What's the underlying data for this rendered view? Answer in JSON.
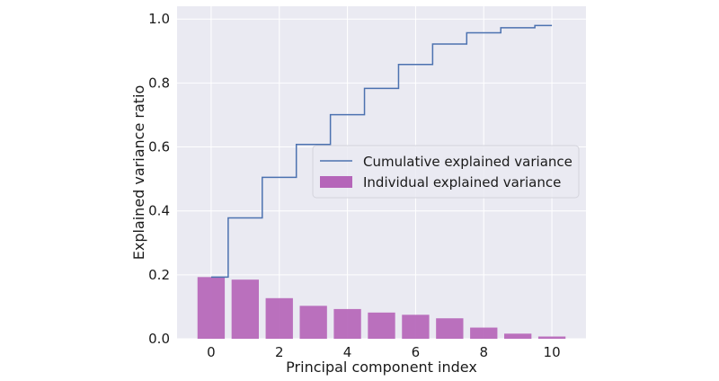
{
  "chart_data": {
    "type": "bar",
    "xlabel": "Principal component index",
    "ylabel": "Explained variance ratio",
    "xlim": [
      -1,
      11
    ],
    "ylim": [
      0,
      1.04
    ],
    "x_ticks": [
      0,
      2,
      4,
      6,
      8,
      10
    ],
    "y_ticks": [
      0.0,
      0.2,
      0.4,
      0.6,
      0.8,
      1.0
    ],
    "x_tick_labels": [
      "0",
      "2",
      "4",
      "6",
      "8",
      "10"
    ],
    "y_tick_labels": [
      "0.0",
      "0.2",
      "0.4",
      "0.6",
      "0.8",
      "1.0"
    ],
    "grid": true,
    "legend_position": "center-right",
    "x": [
      0,
      1,
      2,
      3,
      4,
      5,
      6,
      7,
      8,
      9,
      10
    ],
    "series": [
      {
        "name": "Individual explained variance",
        "type": "bar",
        "color": "#b565b9",
        "values": [
          0.193,
          0.185,
          0.127,
          0.103,
          0.093,
          0.082,
          0.075,
          0.064,
          0.035,
          0.016,
          0.007
        ]
      },
      {
        "name": "Cumulative explained variance",
        "type": "step",
        "color": "#4c72b0",
        "values": [
          0.193,
          0.378,
          0.505,
          0.608,
          0.701,
          0.783,
          0.858,
          0.922,
          0.957,
          0.973,
          0.98
        ]
      }
    ]
  }
}
